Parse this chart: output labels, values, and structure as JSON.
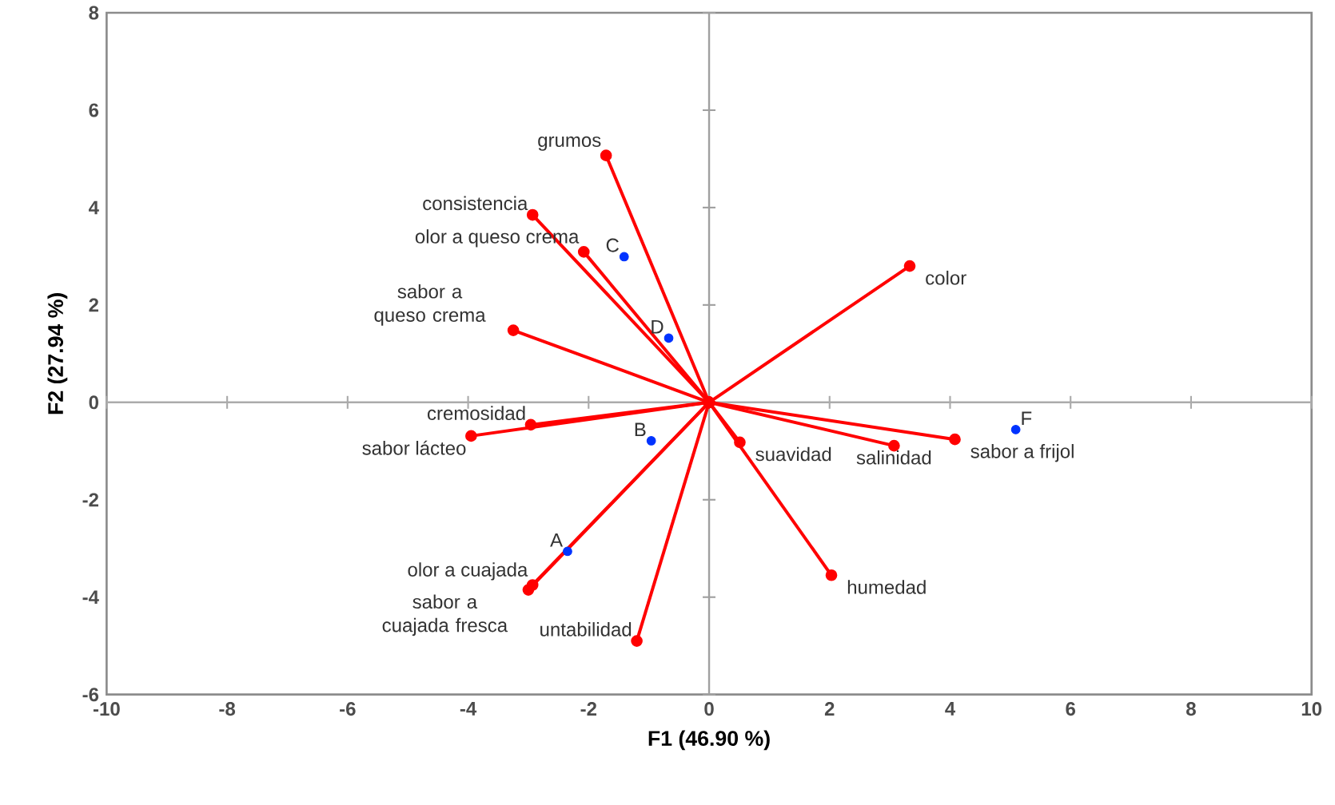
{
  "chart_data": {
    "type": "line",
    "xlabel": "F1 (46.90 %)",
    "ylabel": "F2 (27.94 %)",
    "xlim": [
      -10,
      10
    ],
    "ylim": [
      -6,
      8
    ],
    "xticks": [
      -10,
      -8,
      -6,
      -4,
      -2,
      0,
      2,
      4,
      6,
      8,
      10
    ],
    "yticks": [
      -6,
      -4,
      -2,
      0,
      2,
      4,
      6,
      8
    ],
    "grid": false,
    "marker": "circle",
    "line_style": "solid",
    "ref_lines": [
      {
        "axis": "x",
        "value": 0,
        "color": "#a0a0a0"
      },
      {
        "axis": "y",
        "value": 0,
        "color": "#ababab"
      }
    ],
    "series": [
      {
        "color": "#ff0000",
        "x": [
          0,
          -1.71
        ],
        "values": [
          0,
          5.07
        ]
      },
      {
        "color": "#ff0000",
        "x": [
          0,
          -2.93
        ],
        "values": [
          0,
          3.85
        ]
      },
      {
        "color": "#ff0000",
        "x": [
          0,
          -2.08
        ],
        "values": [
          0,
          3.09
        ]
      },
      {
        "color": "#ff0000",
        "x": [
          0,
          -3.25
        ],
        "values": [
          0,
          1.48
        ]
      },
      {
        "color": "#ff0000",
        "x": [
          0,
          -3.95
        ],
        "values": [
          0,
          -0.69
        ]
      },
      {
        "color": "#ff0000",
        "x": [
          0,
          -2.96
        ],
        "values": [
          0,
          -0.46
        ]
      },
      {
        "color": "#ff0000",
        "x": [
          0,
          -2.93
        ],
        "values": [
          0,
          -3.75
        ]
      },
      {
        "color": "#ff0000",
        "x": [
          0,
          -3.0
        ],
        "values": [
          0,
          -3.85
        ]
      },
      {
        "color": "#ff0000",
        "x": [
          0,
          -1.2
        ],
        "values": [
          0,
          -4.9
        ]
      },
      {
        "color": "#ff0000",
        "x": [
          0,
          3.33
        ],
        "values": [
          0,
          2.8
        ]
      },
      {
        "color": "#ff0000",
        "x": [
          0,
          0.51
        ],
        "values": [
          0,
          -0.82
        ]
      },
      {
        "color": "#ff0000",
        "x": [
          0,
          3.07
        ],
        "values": [
          0,
          -0.89
        ]
      },
      {
        "color": "#ff0000",
        "x": [
          0,
          4.08
        ],
        "values": [
          0,
          -0.76
        ]
      },
      {
        "color": "#ff0000",
        "x": [
          0,
          2.03
        ],
        "values": [
          0,
          -3.55
        ]
      },
      {
        "type": "scatter",
        "color": "#0033ff",
        "x": [
          -2.35,
          -0.96,
          -1.41,
          -0.67,
          5.09
        ],
        "values": [
          -3.06,
          -0.79,
          2.99,
          1.32,
          -0.56
        ]
      }
    ],
    "annotations": [
      {
        "text": "grumos",
        "x": -1.71,
        "y": 5.07
      },
      {
        "text": "consistencia",
        "x": -2.93,
        "y": 3.85
      },
      {
        "text": "olor a queso crema",
        "x": -2.08,
        "y": 3.09
      },
      {
        "text": "sabor a queso crema",
        "x": -3.25,
        "y": 1.48
      },
      {
        "text": "cremosidad",
        "x": -2.96,
        "y": -0.46
      },
      {
        "text": "sabor lácteo",
        "x": -3.95,
        "y": -0.69
      },
      {
        "text": "olor a cuajada",
        "x": -2.93,
        "y": -3.75
      },
      {
        "text": "sabor a cuajada fresca",
        "x": -3.0,
        "y": -3.85
      },
      {
        "text": "untabilidad",
        "x": -1.2,
        "y": -4.9
      },
      {
        "text": "color",
        "x": 3.33,
        "y": 2.8
      },
      {
        "text": "suavidad",
        "x": 0.51,
        "y": -0.82
      },
      {
        "text": "salinidad",
        "x": 3.07,
        "y": -0.89
      },
      {
        "text": "sabor a frijol",
        "x": 4.08,
        "y": -0.76
      },
      {
        "text": "humedad",
        "x": 2.03,
        "y": -3.55
      },
      {
        "text": "A",
        "x": -2.35,
        "y": -3.06
      },
      {
        "text": "B",
        "x": -0.96,
        "y": -0.79
      },
      {
        "text": "C",
        "x": -1.41,
        "y": 2.99
      },
      {
        "text": "D",
        "x": -0.67,
        "y": 1.32
      },
      {
        "text": "F",
        "x": 5.09,
        "y": -0.56
      }
    ]
  }
}
